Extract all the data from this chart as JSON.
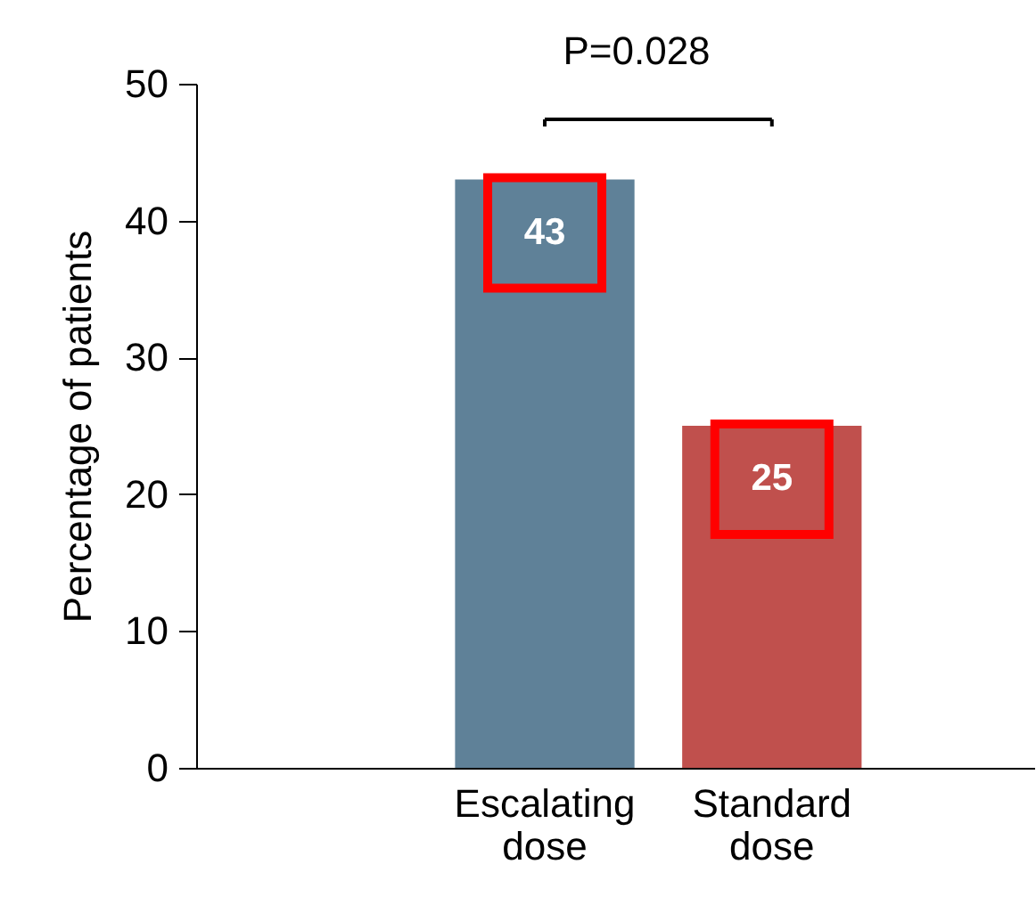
{
  "chart_data": {
    "type": "bar",
    "ylabel": "Percentage of patients",
    "categories": [
      "Escalating dose",
      "Standard dose"
    ],
    "values": [
      43,
      25
    ],
    "colors": [
      "#5f8198",
      "#c0504d"
    ],
    "ylim": [
      0,
      50
    ],
    "yticks": [
      0,
      10,
      20,
      30,
      40,
      50
    ],
    "grid": false,
    "data_labels": true,
    "annotations": [
      "P=0.028"
    ]
  }
}
